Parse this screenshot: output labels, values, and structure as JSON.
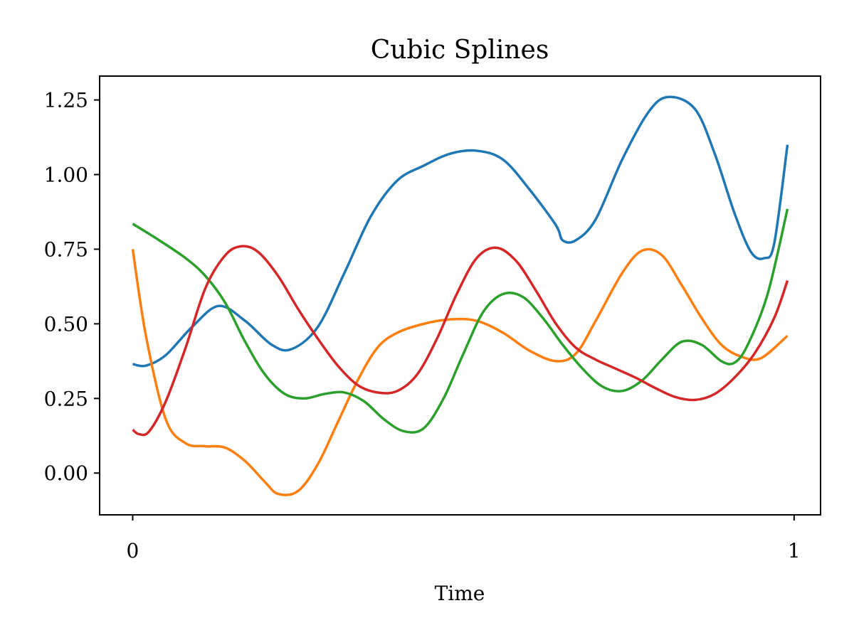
{
  "chart_data": {
    "type": "line",
    "title": "Cubic Splines",
    "xlabel": "Time",
    "ylabel": "",
    "xlim": [
      -0.05,
      1.04
    ],
    "ylim": [
      -0.14,
      1.33
    ],
    "x_ticks": [
      {
        "value": 0,
        "label": "0"
      },
      {
        "value": 1,
        "label": "1"
      }
    ],
    "y_ticks": [
      {
        "value": 0.0,
        "label": "0.00"
      },
      {
        "value": 0.25,
        "label": "0.25"
      },
      {
        "value": 0.5,
        "label": "0.50"
      },
      {
        "value": 0.75,
        "label": "0.75"
      },
      {
        "value": 1.0,
        "label": "1.00"
      },
      {
        "value": 1.25,
        "label": "1.25"
      }
    ],
    "grid": false,
    "legend": "none",
    "series": [
      {
        "color": "#1f77b4",
        "points": [
          [
            0.0,
            0.365
          ],
          [
            0.02,
            0.36
          ],
          [
            0.05,
            0.395
          ],
          [
            0.09,
            0.49
          ],
          [
            0.13,
            0.56
          ],
          [
            0.17,
            0.51
          ],
          [
            0.21,
            0.43
          ],
          [
            0.24,
            0.415
          ],
          [
            0.28,
            0.49
          ],
          [
            0.32,
            0.67
          ],
          [
            0.36,
            0.86
          ],
          [
            0.4,
            0.98
          ],
          [
            0.44,
            1.03
          ],
          [
            0.48,
            1.07
          ],
          [
            0.52,
            1.08
          ],
          [
            0.56,
            1.05
          ],
          [
            0.6,
            0.95
          ],
          [
            0.64,
            0.83
          ],
          [
            0.65,
            0.78
          ],
          [
            0.67,
            0.78
          ],
          [
            0.7,
            0.85
          ],
          [
            0.74,
            1.05
          ],
          [
            0.78,
            1.21
          ],
          [
            0.81,
            1.26
          ],
          [
            0.85,
            1.22
          ],
          [
            0.88,
            1.07
          ],
          [
            0.91,
            0.87
          ],
          [
            0.935,
            0.74
          ],
          [
            0.955,
            0.72
          ],
          [
            0.97,
            0.77
          ],
          [
            0.99,
            1.1
          ]
        ]
      },
      {
        "color": "#ff7f0e",
        "points": [
          [
            0.0,
            0.75
          ],
          [
            0.02,
            0.46
          ],
          [
            0.05,
            0.18
          ],
          [
            0.08,
            0.1
          ],
          [
            0.11,
            0.09
          ],
          [
            0.14,
            0.085
          ],
          [
            0.17,
            0.04
          ],
          [
            0.2,
            -0.03
          ],
          [
            0.22,
            -0.07
          ],
          [
            0.25,
            -0.06
          ],
          [
            0.28,
            0.03
          ],
          [
            0.31,
            0.17
          ],
          [
            0.34,
            0.31
          ],
          [
            0.37,
            0.42
          ],
          [
            0.4,
            0.47
          ],
          [
            0.44,
            0.5
          ],
          [
            0.48,
            0.515
          ],
          [
            0.52,
            0.51
          ],
          [
            0.56,
            0.47
          ],
          [
            0.6,
            0.41
          ],
          [
            0.64,
            0.375
          ],
          [
            0.67,
            0.4
          ],
          [
            0.7,
            0.51
          ],
          [
            0.74,
            0.67
          ],
          [
            0.77,
            0.745
          ],
          [
            0.8,
            0.73
          ],
          [
            0.83,
            0.63
          ],
          [
            0.86,
            0.52
          ],
          [
            0.89,
            0.43
          ],
          [
            0.92,
            0.39
          ],
          [
            0.95,
            0.385
          ],
          [
            0.99,
            0.46
          ]
        ]
      },
      {
        "color": "#2ca02c",
        "points": [
          [
            0.0,
            0.835
          ],
          [
            0.04,
            0.78
          ],
          [
            0.08,
            0.72
          ],
          [
            0.11,
            0.66
          ],
          [
            0.14,
            0.57
          ],
          [
            0.17,
            0.44
          ],
          [
            0.2,
            0.33
          ],
          [
            0.23,
            0.265
          ],
          [
            0.26,
            0.25
          ],
          [
            0.29,
            0.265
          ],
          [
            0.32,
            0.27
          ],
          [
            0.35,
            0.24
          ],
          [
            0.38,
            0.18
          ],
          [
            0.41,
            0.14
          ],
          [
            0.44,
            0.15
          ],
          [
            0.47,
            0.25
          ],
          [
            0.5,
            0.4
          ],
          [
            0.53,
            0.54
          ],
          [
            0.56,
            0.6
          ],
          [
            0.59,
            0.59
          ],
          [
            0.62,
            0.52
          ],
          [
            0.65,
            0.43
          ],
          [
            0.68,
            0.35
          ],
          [
            0.71,
            0.29
          ],
          [
            0.74,
            0.275
          ],
          [
            0.77,
            0.31
          ],
          [
            0.8,
            0.38
          ],
          [
            0.83,
            0.44
          ],
          [
            0.86,
            0.43
          ],
          [
            0.89,
            0.375
          ],
          [
            0.91,
            0.37
          ],
          [
            0.93,
            0.43
          ],
          [
            0.96,
            0.6
          ],
          [
            0.99,
            0.885
          ]
        ]
      },
      {
        "color": "#d62728",
        "points": [
          [
            0.0,
            0.145
          ],
          [
            0.01,
            0.13
          ],
          [
            0.025,
            0.14
          ],
          [
            0.05,
            0.24
          ],
          [
            0.08,
            0.42
          ],
          [
            0.11,
            0.62
          ],
          [
            0.14,
            0.73
          ],
          [
            0.165,
            0.76
          ],
          [
            0.19,
            0.74
          ],
          [
            0.22,
            0.66
          ],
          [
            0.25,
            0.55
          ],
          [
            0.28,
            0.45
          ],
          [
            0.31,
            0.36
          ],
          [
            0.34,
            0.295
          ],
          [
            0.37,
            0.27
          ],
          [
            0.4,
            0.275
          ],
          [
            0.43,
            0.33
          ],
          [
            0.46,
            0.45
          ],
          [
            0.49,
            0.6
          ],
          [
            0.52,
            0.72
          ],
          [
            0.55,
            0.755
          ],
          [
            0.58,
            0.71
          ],
          [
            0.61,
            0.61
          ],
          [
            0.64,
            0.5
          ],
          [
            0.67,
            0.42
          ],
          [
            0.7,
            0.38
          ],
          [
            0.73,
            0.35
          ],
          [
            0.76,
            0.32
          ],
          [
            0.79,
            0.285
          ],
          [
            0.82,
            0.255
          ],
          [
            0.85,
            0.245
          ],
          [
            0.88,
            0.265
          ],
          [
            0.91,
            0.32
          ],
          [
            0.94,
            0.4
          ],
          [
            0.97,
            0.52
          ],
          [
            0.99,
            0.645
          ]
        ]
      }
    ]
  }
}
